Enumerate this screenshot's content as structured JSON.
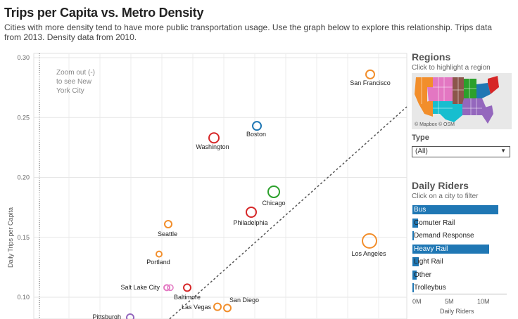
{
  "header": {
    "title": "Trips per Capita vs. Metro Density",
    "subtitle": "Cities with more density tend to have more public transportation usage. Use the graph below to explore this relationship. Trips data from 2013. Density data from 2010."
  },
  "chart_data": {
    "type": "scatter",
    "ylabel": "Daily Trips per Capita",
    "ylim": [
      0.08,
      0.3
    ],
    "yticks": [
      "0.30",
      "0.25",
      "0.20",
      "0.15",
      "0.10"
    ],
    "annotation": "Zoom out (-) to see New York City",
    "annotation_lines": [
      "Zoom out (-)",
      "to see New",
      "York City"
    ],
    "grid": true,
    "points": [
      {
        "city": "San Francisco",
        "y": 0.286,
        "color": "#f28e2b"
      },
      {
        "city": "Boston",
        "y": 0.243,
        "color": "#1f77b4"
      },
      {
        "city": "Washington",
        "y": 0.233,
        "color": "#d62728"
      },
      {
        "city": "Chicago",
        "y": 0.188,
        "color": "#2ca02c"
      },
      {
        "city": "Philadelphia",
        "y": 0.171,
        "color": "#d62728"
      },
      {
        "city": "Seattle",
        "y": 0.161,
        "color": "#f28e2b"
      },
      {
        "city": "Los Angeles",
        "y": 0.147,
        "color": "#f28e2b"
      },
      {
        "city": "Portland",
        "y": 0.136,
        "color": "#f28e2b"
      },
      {
        "city": "Salt Lake City",
        "y": 0.108,
        "color": "#e377c2"
      },
      {
        "city": "Baltimore",
        "y": 0.108,
        "color": "#d62728"
      },
      {
        "city": "Las Vegas",
        "y": 0.092,
        "color": "#f28e2b"
      },
      {
        "city": "San Diego",
        "y": 0.091,
        "color": "#f28e2b"
      },
      {
        "city": "Pittsburgh",
        "y": 0.083,
        "color": "#9467bd"
      }
    ]
  },
  "regions": {
    "title": "Regions",
    "subtitle": "Click to highlight a region",
    "map_credit": "© Mapbox  © OSM"
  },
  "type_filter": {
    "label": "Type",
    "selected": "(All)"
  },
  "daily_riders": {
    "title": "Daily Riders",
    "subtitle": "Click on a city to filter",
    "axis_label": "Daily Riders",
    "ticks": [
      "0M",
      "5M",
      "10M"
    ],
    "xmax": 12.5,
    "items": [
      {
        "label": "Bus",
        "value": 12.0
      },
      {
        "label": "Comuter Rail",
        "value": 0.8
      },
      {
        "label": "Demand Response",
        "value": 0.1
      },
      {
        "label": "Heavy Rail",
        "value": 10.7
      },
      {
        "label": "Light Rail",
        "value": 0.9
      },
      {
        "label": "Other",
        "value": 0.6
      },
      {
        "label": "Trolleybus",
        "value": 0.2
      }
    ]
  }
}
